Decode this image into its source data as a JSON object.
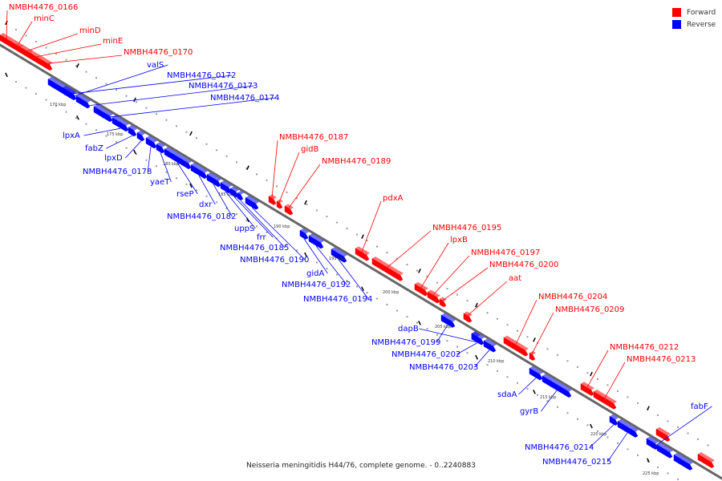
{
  "legend": {
    "items": [
      {
        "label": "Forward",
        "color": "#ff0000"
      },
      {
        "label": "Reverse",
        "color": "#0000ff"
      }
    ]
  },
  "footer": "Neisseria meningitidis H44/76, complete genome. - 0..2240883",
  "colors": {
    "forward": "#ff0000",
    "reverse": "#0000ff",
    "backbone": "#666666",
    "tick": "#999999"
  },
  "scale_labels": [
    "170 kbp",
    "175 kbp",
    "180 kbp",
    "185 kbp",
    "190 kbp",
    "195 kbp",
    "200 kbp",
    "205 kbp",
    "210 kbp",
    "215 kbp",
    "220 kbp",
    "225 kbp"
  ],
  "genes": [
    {
      "label": "NMBH4476_0166",
      "strand": "forward"
    },
    {
      "label": "minC",
      "strand": "forward"
    },
    {
      "label": "minD",
      "strand": "forward"
    },
    {
      "label": "minE",
      "strand": "forward"
    },
    {
      "label": "NMBH4476_0170",
      "strand": "forward"
    },
    {
      "label": "valS",
      "strand": "reverse"
    },
    {
      "label": "NMBH4476_0172",
      "strand": "reverse"
    },
    {
      "label": "NMBH4476_0173",
      "strand": "reverse"
    },
    {
      "label": "NMBH4476_0174",
      "strand": "reverse"
    },
    {
      "label": "lpxA",
      "strand": "reverse"
    },
    {
      "label": "fabZ",
      "strand": "reverse"
    },
    {
      "label": "lpxD",
      "strand": "reverse"
    },
    {
      "label": "NMBH4476_0178",
      "strand": "reverse"
    },
    {
      "label": "yaeT",
      "strand": "reverse"
    },
    {
      "label": "rseP",
      "strand": "reverse"
    },
    {
      "label": "dxr",
      "strand": "reverse"
    },
    {
      "label": "NMBH4476_0182",
      "strand": "reverse"
    },
    {
      "label": "uppS",
      "strand": "reverse"
    },
    {
      "label": "frr",
      "strand": "reverse"
    },
    {
      "label": "NMBH4476_0185",
      "strand": "reverse"
    },
    {
      "label": "NMBH4476_0190",
      "strand": "reverse"
    },
    {
      "label": "NMBH4476_0187",
      "strand": "forward"
    },
    {
      "label": "gidB",
      "strand": "forward"
    },
    {
      "label": "NMBH4476_0189",
      "strand": "forward"
    },
    {
      "label": "pdxA",
      "strand": "forward"
    },
    {
      "label": "gidA",
      "strand": "reverse"
    },
    {
      "label": "NMBH4476_0192",
      "strand": "reverse"
    },
    {
      "label": "NMBH4476_0194",
      "strand": "reverse"
    },
    {
      "label": "NMBH4476_0195",
      "strand": "forward"
    },
    {
      "label": "lpxB",
      "strand": "forward"
    },
    {
      "label": "NMBH4476_0197",
      "strand": "forward"
    },
    {
      "label": "NMBH4476_0200",
      "strand": "forward"
    },
    {
      "label": "aat",
      "strand": "forward"
    },
    {
      "label": "dapB",
      "strand": "reverse"
    },
    {
      "label": "NMBH4476_0199",
      "strand": "reverse"
    },
    {
      "label": "NMBH4476_0202",
      "strand": "reverse"
    },
    {
      "label": "NMBH4476_0203",
      "strand": "reverse"
    },
    {
      "label": "NMBH4476_0204",
      "strand": "forward"
    },
    {
      "label": "NMBH4476_0209",
      "strand": "forward"
    },
    {
      "label": "NMBH4476_0212",
      "strand": "forward"
    },
    {
      "label": "NMBH4476_0213",
      "strand": "forward"
    },
    {
      "label": "sdaA",
      "strand": "reverse"
    },
    {
      "label": "gyrB",
      "strand": "reverse"
    },
    {
      "label": "fabF",
      "strand": "reverse"
    },
    {
      "label": "NMBH4476_0214",
      "strand": "reverse"
    },
    {
      "label": "NMBH4476_0215",
      "strand": "reverse"
    }
  ]
}
